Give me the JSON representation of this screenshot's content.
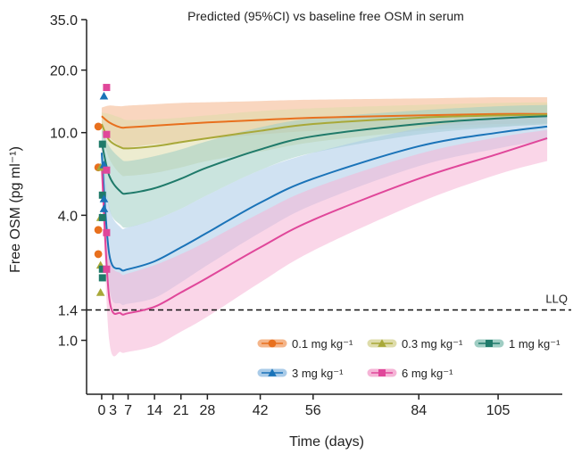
{
  "chart_data": {
    "type": "line",
    "title": "Predicted (95%CI) vs baseline free OSM in serum",
    "xlabel": "Time (days)",
    "ylabel": "Free OSM (pg ml⁻¹)",
    "y_scale": "log",
    "xlim": [
      -4,
      122
    ],
    "ylim": [
      0.55,
      35
    ],
    "x_ticks": [
      0,
      3,
      7,
      14,
      21,
      28,
      42,
      56,
      84,
      105
    ],
    "y_ticks": [
      {
        "value": 1.0,
        "label": "1.0"
      },
      {
        "value": 1.4,
        "label": "1.4"
      },
      {
        "value": 4.0,
        "label": "4.0"
      },
      {
        "value": 10.0,
        "label": "10.0"
      },
      {
        "value": 20.0,
        "label": "20.0"
      },
      {
        "value": 35.0,
        "label": "35.0"
      }
    ],
    "reference_line": {
      "value": 1.4,
      "label": "LLQ",
      "style": "dashed"
    },
    "legend_position": "bottom-right",
    "series": [
      {
        "name": "0.1 mg kg⁻¹",
        "color": "#e8701e",
        "band_color": "#f4b58a",
        "marker": "circle",
        "x": [
          0,
          2,
          5,
          7,
          14,
          21,
          28,
          42,
          56,
          84,
          105,
          118
        ],
        "median": [
          12.0,
          11.2,
          10.6,
          10.6,
          10.8,
          11.0,
          11.2,
          11.5,
          11.8,
          12.1,
          12.3,
          12.3
        ],
        "lower": [
          11.0,
          9.5,
          8.6,
          8.5,
          8.8,
          9.0,
          9.3,
          9.8,
          10.2,
          10.7,
          11.0,
          11.1
        ],
        "upper": [
          13.2,
          13.5,
          13.4,
          13.5,
          13.7,
          13.9,
          14.0,
          14.2,
          14.4,
          14.6,
          14.8,
          14.8
        ],
        "baseline_points": [
          10.7,
          6.8,
          3.4,
          2.6
        ]
      },
      {
        "name": "0.3 mg kg⁻¹",
        "color": "#a8a838",
        "band_color": "#dedcaa",
        "marker": "triangle",
        "x": [
          0,
          2,
          5,
          7,
          14,
          21,
          28,
          42,
          56,
          84,
          105,
          118
        ],
        "median": [
          11.0,
          9.2,
          8.5,
          8.4,
          8.6,
          9.0,
          9.4,
          10.2,
          11.0,
          11.8,
          12.1,
          12.2
        ],
        "lower": [
          10.0,
          7.5,
          6.3,
          6.2,
          6.4,
          6.8,
          7.3,
          8.1,
          9.0,
          10.2,
          10.7,
          10.9
        ],
        "upper": [
          12.5,
          12.3,
          11.8,
          11.5,
          11.6,
          11.8,
          12.1,
          12.7,
          13.1,
          13.6,
          13.9,
          14.0
        ],
        "baseline_points": [
          6.8,
          3.9,
          2.3,
          1.7
        ]
      },
      {
        "name": "1 mg kg⁻¹",
        "color": "#1f7a6a",
        "band_color": "#9fcdc3",
        "marker": "square",
        "x": [
          0,
          2,
          5,
          7,
          14,
          21,
          28,
          42,
          56,
          84,
          105,
          118
        ],
        "median": [
          9.0,
          6.2,
          5.2,
          5.1,
          5.4,
          6.0,
          6.8,
          8.3,
          9.6,
          11.0,
          11.7,
          12.0
        ],
        "lower": [
          8.0,
          4.3,
          3.6,
          3.5,
          3.8,
          4.3,
          5.0,
          6.6,
          8.0,
          9.8,
          10.6,
          11.0
        ],
        "upper": [
          10.5,
          8.6,
          7.5,
          7.3,
          7.7,
          8.3,
          9.1,
          10.6,
          11.7,
          12.8,
          13.4,
          13.6
        ],
        "baseline_points": [
          8.8,
          5.0,
          3.9,
          2.2,
          2.0
        ]
      },
      {
        "name": "3 mg kg⁻¹",
        "color": "#1a73b8",
        "band_color": "#a9cbe8",
        "marker": "triangle",
        "x": [
          0,
          2,
          5,
          7,
          14,
          21,
          28,
          42,
          56,
          84,
          105,
          118
        ],
        "median": [
          8.0,
          2.6,
          2.2,
          2.2,
          2.4,
          2.8,
          3.3,
          4.6,
          6.0,
          8.6,
          10.0,
          10.7
        ],
        "lower": [
          7.0,
          1.8,
          1.5,
          1.5,
          1.6,
          1.9,
          2.3,
          3.3,
          4.5,
          6.9,
          8.4,
          9.2
        ],
        "upper": [
          9.6,
          4.4,
          3.5,
          3.5,
          3.8,
          4.3,
          5.0,
          6.6,
          8.0,
          10.5,
          11.8,
          12.3
        ],
        "baseline_points": [
          15.0,
          7.0,
          4.8,
          4.3
        ]
      },
      {
        "name": "6 mg kg⁻¹",
        "color": "#e0479a",
        "band_color": "#f5b4d6",
        "marker": "square",
        "x": [
          0,
          2,
          5,
          7,
          14,
          21,
          28,
          42,
          56,
          84,
          105,
          118
        ],
        "median": [
          7.0,
          1.6,
          1.35,
          1.35,
          1.45,
          1.7,
          2.0,
          2.8,
          3.8,
          6.0,
          7.9,
          9.4
        ],
        "lower": [
          6.0,
          1.0,
          0.88,
          0.88,
          0.94,
          1.1,
          1.3,
          1.9,
          2.7,
          4.6,
          6.3,
          7.3
        ],
        "upper": [
          9.0,
          2.6,
          2.1,
          2.1,
          2.3,
          2.6,
          3.0,
          4.1,
          5.4,
          7.9,
          9.5,
          10.3
        ],
        "baseline_points": [
          16.5,
          9.8,
          6.6,
          3.3,
          2.2
        ]
      }
    ]
  }
}
